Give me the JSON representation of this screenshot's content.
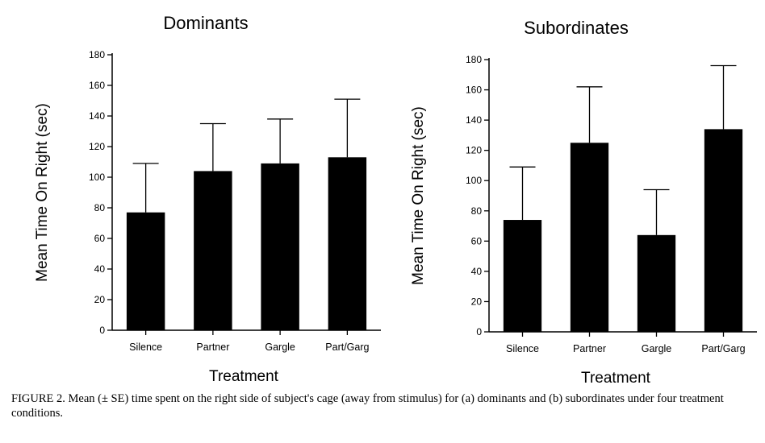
{
  "chart_data": [
    {
      "type": "bar",
      "title": "Dominants",
      "xlabel": "Treatment",
      "ylabel": "Mean Time On Right (sec)",
      "categories": [
        "Silence",
        "Partner",
        "Gargle",
        "Part/Garg"
      ],
      "values": [
        77,
        104,
        109,
        113
      ],
      "error": [
        32,
        31,
        29,
        38
      ],
      "ylim": [
        0,
        180
      ],
      "yticks": [
        0,
        20,
        40,
        60,
        80,
        100,
        120,
        140,
        160,
        180
      ],
      "grid": false,
      "bar_color": "#000000"
    },
    {
      "type": "bar",
      "title": "Subordinates",
      "xlabel": "Treatment",
      "ylabel": "Mean Time On Right (sec)",
      "categories": [
        "Silence",
        "Partner",
        "Gargle",
        "Part/Garg"
      ],
      "values": [
        74,
        125,
        64,
        134
      ],
      "error": [
        35,
        37,
        30,
        42
      ],
      "ylim": [
        0,
        180
      ],
      "yticks": [
        0,
        20,
        40,
        60,
        80,
        100,
        120,
        140,
        160,
        180
      ],
      "grid": false,
      "bar_color": "#000000"
    }
  ],
  "caption": "FIGURE 2.   Mean (± SE) time spent on the right side of subject's cage (away from stimulus) for (a) dominants and (b) subordinates under four treatment conditions."
}
